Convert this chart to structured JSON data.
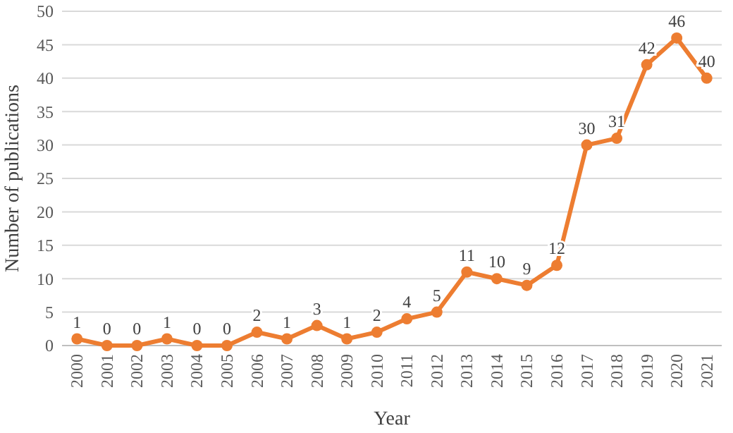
{
  "chart_data": {
    "type": "line",
    "xlabel": "Year",
    "ylabel": "Number of publications",
    "categories": [
      "2000",
      "2001",
      "2002",
      "2003",
      "2004",
      "2005",
      "2006",
      "2007",
      "2008",
      "2009",
      "2010",
      "2011",
      "2012",
      "2013",
      "2014",
      "2015",
      "2016",
      "2017",
      "2018",
      "2019",
      "2020",
      "2021"
    ],
    "series": [
      {
        "color": "#ed7d31",
        "values": [
          1,
          0,
          0,
          1,
          0,
          0,
          2,
          1,
          3,
          1,
          2,
          4,
          5,
          11,
          10,
          9,
          12,
          30,
          31,
          42,
          46,
          40
        ]
      }
    ],
    "ylim": [
      0,
      50
    ],
    "yticks": [
      0,
      5,
      10,
      15,
      20,
      25,
      30,
      35,
      40,
      45,
      50
    ],
    "grid": "y",
    "marker": "circle",
    "line_style": "solid",
    "data_labels": true
  }
}
